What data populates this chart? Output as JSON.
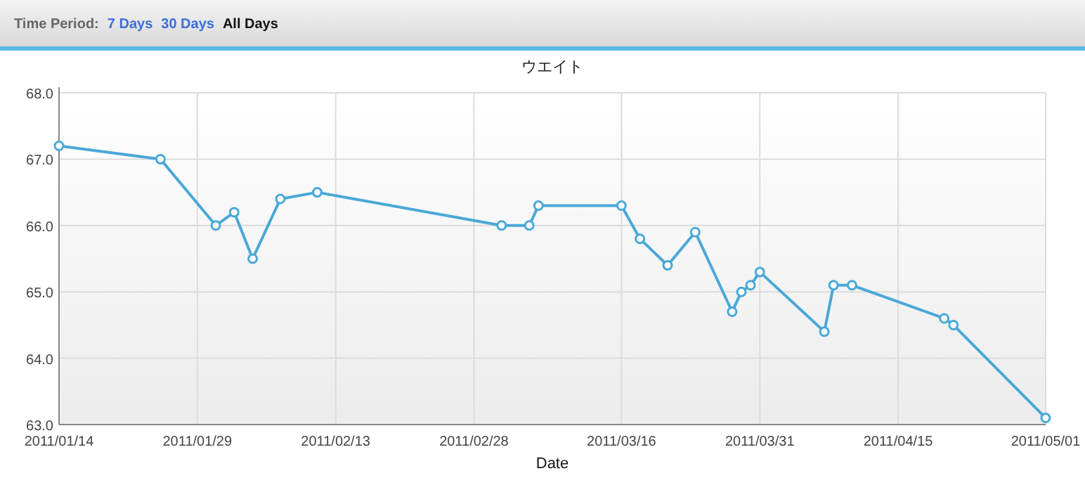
{
  "chart_data": {
    "type": "line",
    "title": "ウエイト",
    "xlabel": "Date",
    "annotations": [
      "Time Period:",
      "7 Days",
      "30 Days",
      "All Days"
    ],
    "x": [
      "2011-01-14",
      "2011-01-25",
      "2011-01-31",
      "2011-02-02",
      "2011-02-04",
      "2011-02-07",
      "2011-02-11",
      "2011-03-03",
      "2011-03-06",
      "2011-03-07",
      "2011-03-16",
      "2011-03-18",
      "2011-03-21",
      "2011-03-24",
      "2011-03-28",
      "2011-03-29",
      "2011-03-30",
      "2011-03-31",
      "2011-04-07",
      "2011-04-08",
      "2011-04-10",
      "2011-04-20",
      "2011-04-21",
      "2011-05-01"
    ],
    "series": [
      {
        "color": "#4aa8d8",
        "values": [
          67.2,
          67.0,
          66.0,
          66.2,
          65.5,
          66.4,
          66.5,
          66.0,
          66.0,
          66.3,
          66.3,
          65.8,
          65.4,
          65.9,
          64.7,
          65.0,
          65.1,
          65.3,
          64.4,
          65.1,
          65.1,
          64.6,
          64.5,
          63.1
        ]
      }
    ],
    "xlim": [
      "2011-01-14",
      "2011-05-01"
    ],
    "xticks": [
      {
        "value": "2011-01-14",
        "label": "2011/01/14"
      },
      {
        "value": "2011-01-29",
        "label": "2011/01/29"
      },
      {
        "value": "2011-02-13",
        "label": "2011/02/13"
      },
      {
        "value": "2011-02-28",
        "label": "2011/02/28"
      },
      {
        "value": "2011-03-16",
        "label": "2011/03/16"
      },
      {
        "value": "2011-03-31",
        "label": "2011/03/31"
      },
      {
        "value": "2011-04-15",
        "label": "2011/04/15"
      },
      {
        "value": "2011-05-01",
        "label": "2011/05/01"
      }
    ],
    "ylim": [
      63,
      68
    ],
    "yticks": [
      {
        "value": 63,
        "label": "63.0"
      },
      {
        "value": 64,
        "label": "64.0"
      },
      {
        "value": 65,
        "label": "65.0"
      },
      {
        "value": 66,
        "label": "66.0"
      },
      {
        "value": 67,
        "label": "67.0"
      },
      {
        "value": 68,
        "label": "68.0"
      }
    ],
    "grid": true,
    "marker": "circle",
    "line_style": "solid"
  }
}
